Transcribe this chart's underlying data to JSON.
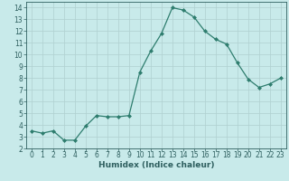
{
  "x": [
    0,
    1,
    2,
    3,
    4,
    5,
    6,
    7,
    8,
    9,
    10,
    11,
    12,
    13,
    14,
    15,
    16,
    17,
    18,
    19,
    20,
    21,
    22,
    23
  ],
  "y": [
    3.5,
    3.3,
    3.5,
    2.7,
    2.7,
    3.9,
    4.8,
    4.7,
    4.7,
    4.8,
    8.5,
    10.3,
    11.8,
    14.0,
    13.8,
    13.2,
    12.0,
    11.3,
    10.9,
    9.3,
    7.9,
    7.2,
    7.5,
    8.0
  ],
  "line_color": "#2e7d6e",
  "marker": "D",
  "marker_size": 2,
  "bg_color": "#c8eaea",
  "grid_color": "#afd0d0",
  "xlabel": "Humidex (Indice chaleur)",
  "xlim": [
    -0.5,
    23.5
  ],
  "ylim": [
    2,
    14.5
  ],
  "yticks": [
    2,
    3,
    4,
    5,
    6,
    7,
    8,
    9,
    10,
    11,
    12,
    13,
    14
  ],
  "xticks": [
    0,
    1,
    2,
    3,
    4,
    5,
    6,
    7,
    8,
    9,
    10,
    11,
    12,
    13,
    14,
    15,
    16,
    17,
    18,
    19,
    20,
    21,
    22,
    23
  ],
  "font_color": "#2e5f5f",
  "label_fontsize": 6.5,
  "tick_fontsize": 5.5
}
